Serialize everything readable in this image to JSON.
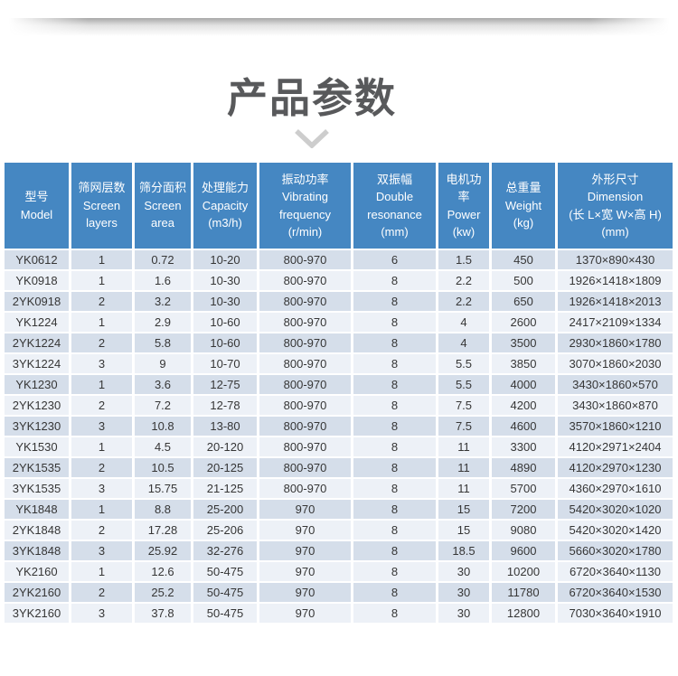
{
  "page": {
    "title": "产品参数",
    "colors": {
      "accent": "#4587c2",
      "row_stripe_dark": "#d5deea",
      "row_stripe_light": "#edf1f7",
      "title_color": "#58595b",
      "chevron_color": "#cdcdcd"
    }
  },
  "table": {
    "columns": [
      {
        "id": "model",
        "lines": [
          "型号",
          "Model"
        ]
      },
      {
        "id": "screen-layers",
        "lines": [
          "筛网层数",
          "Screen",
          "layers"
        ]
      },
      {
        "id": "screen-area",
        "lines": [
          "筛分面积",
          "Screen",
          "area"
        ]
      },
      {
        "id": "capacity",
        "lines": [
          "处理能力",
          "Capacity",
          "(m3/h)"
        ]
      },
      {
        "id": "vibrating-frequency",
        "lines": [
          "振动功率",
          "Vibrating",
          "frequency",
          "(r/min)"
        ]
      },
      {
        "id": "double-resonance",
        "lines": [
          "双振幅",
          "Double",
          "resonance",
          "(mm)"
        ]
      },
      {
        "id": "motor-power",
        "lines": [
          "电机功",
          "率",
          "Power",
          "(kw)"
        ]
      },
      {
        "id": "weight",
        "lines": [
          "总重量",
          "Weight",
          "(kg)"
        ]
      },
      {
        "id": "dimension",
        "lines": [
          "外形尺寸",
          "Dimension",
          "(长 L×宽 W×高 H)",
          "(mm)"
        ]
      }
    ],
    "rows": [
      [
        "YK0612",
        "1",
        "0.72",
        "10-20",
        "800-970",
        "6",
        "1.5",
        "450",
        "1370×890×430"
      ],
      [
        "YK0918",
        "1",
        "1.6",
        "10-30",
        "800-970",
        "8",
        "2.2",
        "500",
        "1926×1418×1809"
      ],
      [
        "2YK0918",
        "2",
        "3.2",
        "10-30",
        "800-970",
        "8",
        "2.2",
        "650",
        "1926×1418×2013"
      ],
      [
        "YK1224",
        "1",
        "2.9",
        "10-60",
        "800-970",
        "8",
        "4",
        "2600",
        "2417×2109×1334"
      ],
      [
        "2YK1224",
        "2",
        "5.8",
        "10-60",
        "800-970",
        "8",
        "4",
        "3500",
        "2930×1860×1780"
      ],
      [
        "3YK1224",
        "3",
        "9",
        "10-70",
        "800-970",
        "8",
        "5.5",
        "3850",
        "3070×1860×2030"
      ],
      [
        "YK1230",
        "1",
        "3.6",
        "12-75",
        "800-970",
        "8",
        "5.5",
        "4000",
        "3430×1860×570"
      ],
      [
        "2YK1230",
        "2",
        "7.2",
        "12-78",
        "800-970",
        "8",
        "7.5",
        "4200",
        "3430×1860×870"
      ],
      [
        "3YK1230",
        "3",
        "10.8",
        "13-80",
        "800-970",
        "8",
        "7.5",
        "4600",
        "3570×1860×1210"
      ],
      [
        "YK1530",
        "1",
        "4.5",
        "20-120",
        "800-970",
        "8",
        "11",
        "3300",
        "4120×2971×2404"
      ],
      [
        "2YK1535",
        "2",
        "10.5",
        "20-125",
        "800-970",
        "8",
        "11",
        "4890",
        "4120×2970×1230"
      ],
      [
        "3YK1535",
        "3",
        "15.75",
        "21-125",
        "800-970",
        "8",
        "11",
        "5700",
        "4360×2970×1610"
      ],
      [
        "YK1848",
        "1",
        "8.8",
        "25-200",
        "970",
        "8",
        "15",
        "7200",
        "5420×3020×1020"
      ],
      [
        "2YK1848",
        "2",
        "17.28",
        "25-206",
        "970",
        "8",
        "15",
        "9080",
        "5420×3020×1420"
      ],
      [
        "3YK1848",
        "3",
        "25.92",
        "32-276",
        "970",
        "8",
        "18.5",
        "9600",
        "5660×3020×1780"
      ],
      [
        "YK2160",
        "1",
        "12.6",
        "50-475",
        "970",
        "8",
        "30",
        "10200",
        "6720×3640×1130"
      ],
      [
        "2YK2160",
        "2",
        "25.2",
        "50-475",
        "970",
        "8",
        "30",
        "11780",
        "6720×3640×1530"
      ],
      [
        "3YK2160",
        "3",
        "37.8",
        "50-475",
        "970",
        "8",
        "30",
        "12800",
        "7030×3640×1910"
      ]
    ]
  }
}
